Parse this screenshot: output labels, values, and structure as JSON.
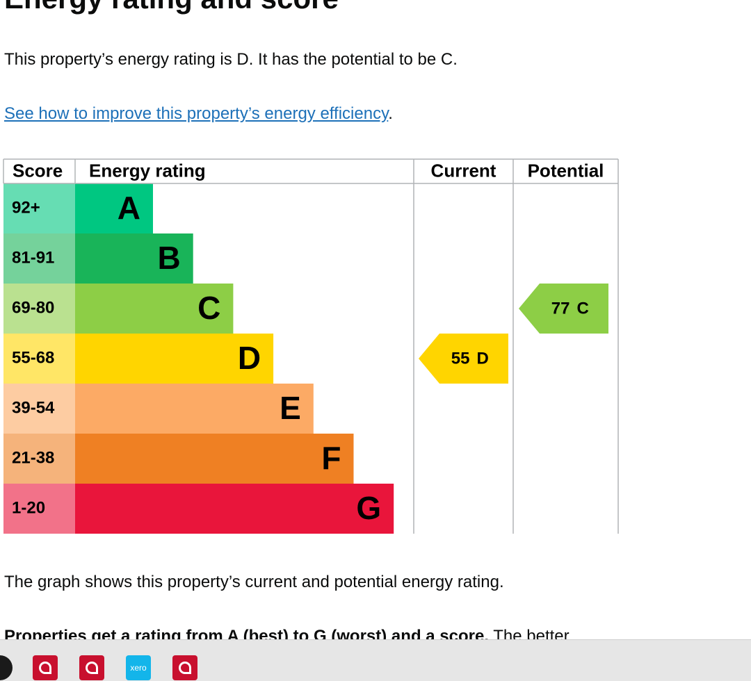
{
  "heading": "Energy rating and score",
  "intro": "This property’s energy rating is D. It has the potential to be C.",
  "link": "See how to improve this property’s energy efficiency",
  "link_after": ".",
  "table": {
    "headers": [
      "Score",
      "Energy rating",
      "Current",
      "Potential"
    ],
    "bands": [
      {
        "score": "92+",
        "letter": "A",
        "color": "#00c781"
      },
      {
        "score": "81-91",
        "letter": "B",
        "color": "#19b459"
      },
      {
        "score": "69-80",
        "letter": "C",
        "color": "#8dce46"
      },
      {
        "score": "55-68",
        "letter": "D",
        "color": "#ffd500"
      },
      {
        "score": "39-54",
        "letter": "E",
        "color": "#fcaa65"
      },
      {
        "score": "21-38",
        "letter": "F",
        "color": "#ef8023"
      },
      {
        "score": "1-20",
        "letter": "G",
        "color": "#e9153b"
      }
    ],
    "current": {
      "score": 55,
      "letter": "D"
    },
    "potential": {
      "score": 77,
      "letter": "C"
    }
  },
  "graph_note": "The graph shows this property’s current and potential energy rating.",
  "cut_text": {
    "bold": "Properties get a rating from A (best) to G (worst) and a score.",
    "rest": " The better"
  },
  "taskbar": {
    "xero_label": "xero"
  }
}
